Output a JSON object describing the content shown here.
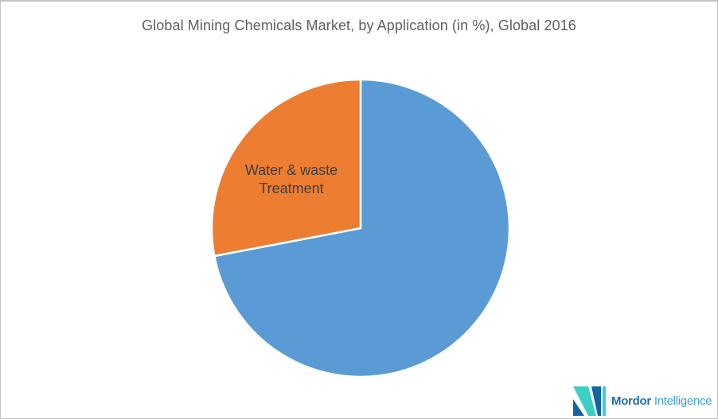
{
  "page": {
    "background": "#ffffff",
    "border_color": "#c4c4c4"
  },
  "header": {
    "title": "Global Mining Chemicals Market, by Application (in %), Global 2016",
    "title_color": "#5f5f5f"
  },
  "chart_data": {
    "type": "pie",
    "title": "Global Mining Chemicals Market, by Application (in %), Global 2016",
    "unit": "%",
    "start_angle": "top (12 o'clock)",
    "direction": "clockwise",
    "legend_position": "none",
    "slices": [
      {
        "label": "",
        "value": 72,
        "color": "#5B9BD5",
        "data_label_shown": false
      },
      {
        "label": "Water & waste Treatment",
        "value": 28,
        "color": "#ED7D31",
        "data_label_shown": true,
        "label_color": "#404040"
      }
    ],
    "slice_separator_color": "#ffffff"
  },
  "logo": {
    "brand_bold": "Mordor",
    "brand_light": "Intelligence",
    "bold_color": "#1d6fb5",
    "light_color": "#3f9ed9",
    "mark_teal": "#3ecfc3",
    "mark_blue": "#1565a0"
  }
}
